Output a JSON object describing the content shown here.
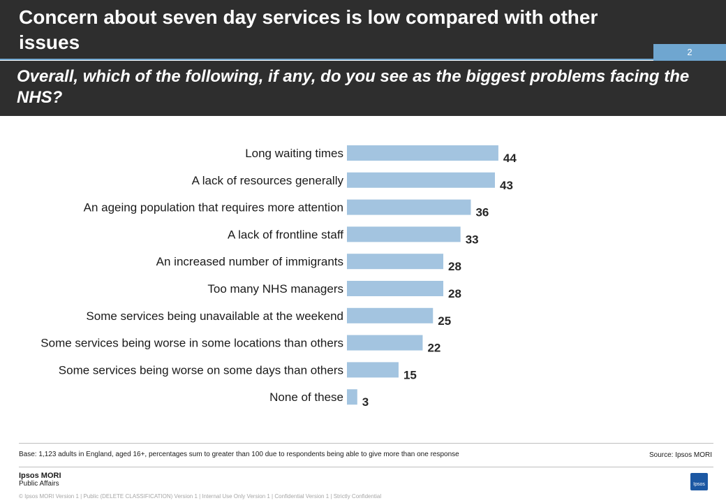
{
  "slide": {
    "title": "Concern about seven day services is low compared with other issues",
    "page_number": "2",
    "question": "Overall, which of the following, if any, do you see as the biggest problems facing the NHS?"
  },
  "chart_data": {
    "type": "bar",
    "orientation": "horizontal",
    "categories": [
      "Long waiting times",
      "A lack of resources generally",
      "An ageing population that requires more attention",
      "A lack of frontline staff",
      "An increased number of immigrants",
      "Too many NHS managers",
      "Some services being unavailable at the weekend",
      "Some services being worse in some locations than others",
      "Some services being worse on some days than others",
      "None of these"
    ],
    "values": [
      44,
      43,
      36,
      33,
      28,
      28,
      25,
      22,
      15,
      3
    ],
    "title": "",
    "xlabel": "",
    "ylabel": "",
    "grid": false,
    "bar_color": "#a3c4e0"
  },
  "footer": {
    "base_note": "Base: 1,123 adults in England,  aged 16+, percentages sum to greater than 100 due to respondents being able to give more than one response",
    "source": "Source: Ipsos MORI",
    "logo_line1": "Ipsos MORI",
    "logo_line2": "Public Affairs",
    "badge": "Ipsos",
    "legal": "© Ipsos MORI     Version 1 | Public (DELETE CLASSIFICATION)   Version 1 | Internal Use Only   Version 1 | Confidential    Version 1 | Strictly  Confidential"
  }
}
